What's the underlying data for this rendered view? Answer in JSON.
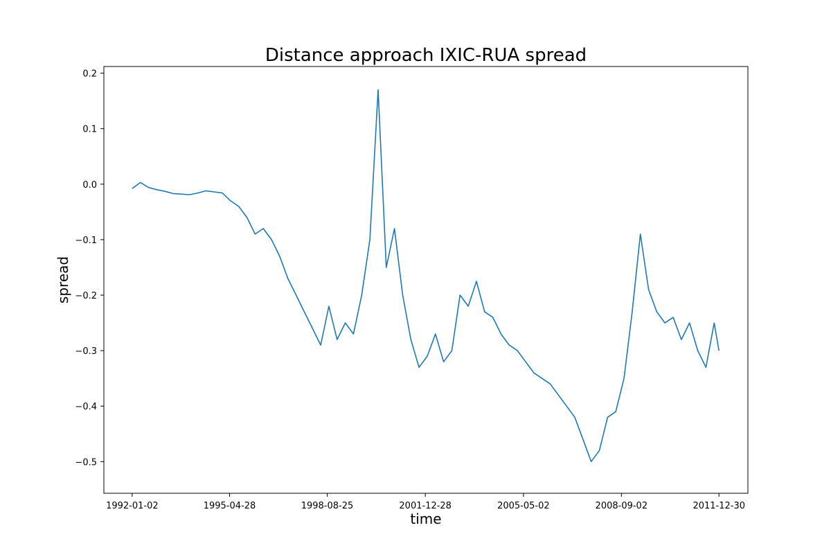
{
  "chart_data": {
    "type": "line",
    "title": "Distance approach IXIC-RUA spread",
    "xlabel": "time",
    "ylabel": "spread",
    "x_tick_labels": [
      "1992-01-02",
      "1995-04-28",
      "1998-08-25",
      "2001-12-28",
      "2005-05-02",
      "2008-09-02",
      "2011-12-30"
    ],
    "y_tick_labels": [
      "0.2",
      "0.1",
      "0.0",
      "−0.1",
      "−0.2",
      "−0.3",
      "−0.4",
      "−0.5"
    ],
    "y_ticks": [
      0.2,
      0.1,
      0.0,
      -0.1,
      -0.2,
      -0.3,
      -0.4,
      -0.5
    ],
    "ylim": [
      -0.557,
      0.212
    ],
    "xlim": [
      "1991-01-15",
      "2012-12-24"
    ],
    "grid": false,
    "line_color": "#1f77b4",
    "series": [
      {
        "x": [
          "1992-01-02",
          "1992-04-13",
          "1992-07-24",
          "1992-11-03",
          "1993-02-13",
          "1993-05-26",
          "1993-09-05",
          "1993-12-16",
          "1994-03-28",
          "1994-07-08",
          "1994-10-18",
          "1995-01-28",
          "1995-05-10",
          "1995-08-20",
          "1995-11-30",
          "1996-03-11",
          "1996-06-21",
          "1996-10-01",
          "1997-01-11",
          "1997-04-23",
          "1997-08-03",
          "1997-11-13",
          "1998-02-23",
          "1998-06-05",
          "1998-09-15",
          "1998-12-26",
          "1999-04-07",
          "1999-07-18",
          "1999-10-28",
          "2000-02-07",
          "2000-05-19",
          "2000-08-29",
          "2000-12-09",
          "2001-03-21",
          "2001-07-01",
          "2001-10-11",
          "2002-01-21",
          "2002-05-03",
          "2002-08-13",
          "2002-11-23",
          "2003-03-05",
          "2003-06-15",
          "2003-09-25",
          "2004-01-05",
          "2004-04-16",
          "2004-07-27",
          "2004-11-06",
          "2005-02-16",
          "2005-05-29",
          "2005-09-08",
          "2005-12-19",
          "2006-03-31",
          "2006-07-11",
          "2006-10-21",
          "2007-01-31",
          "2007-05-13",
          "2007-08-23",
          "2007-12-03",
          "2008-03-14",
          "2008-06-24",
          "2008-10-04",
          "2009-01-14",
          "2009-04-26",
          "2009-08-06",
          "2009-11-16",
          "2010-02-26",
          "2010-06-08",
          "2010-09-18",
          "2010-12-29",
          "2011-04-10",
          "2011-07-21",
          "2011-10-31",
          "2011-12-30"
        ],
        "y": [
          -0.008,
          0.003,
          -0.006,
          -0.01,
          -0.013,
          -0.017,
          -0.018,
          -0.019,
          -0.016,
          -0.012,
          -0.014,
          -0.016,
          -0.03,
          -0.04,
          -0.06,
          -0.09,
          -0.08,
          -0.1,
          -0.13,
          -0.17,
          -0.2,
          -0.23,
          -0.26,
          -0.29,
          -0.22,
          -0.28,
          -0.25,
          -0.27,
          -0.2,
          -0.1,
          0.17,
          -0.15,
          -0.08,
          -0.2,
          -0.28,
          -0.33,
          -0.31,
          -0.27,
          -0.32,
          -0.3,
          -0.2,
          -0.22,
          -0.175,
          -0.23,
          -0.24,
          -0.27,
          -0.29,
          -0.3,
          -0.32,
          -0.34,
          -0.35,
          -0.36,
          -0.38,
          -0.4,
          -0.42,
          -0.46,
          -0.5,
          -0.48,
          -0.42,
          -0.41,
          -0.35,
          -0.23,
          -0.09,
          -0.19,
          -0.23,
          -0.25,
          -0.24,
          -0.28,
          -0.25,
          -0.3,
          -0.33,
          -0.25,
          -0.3
        ]
      }
    ]
  }
}
